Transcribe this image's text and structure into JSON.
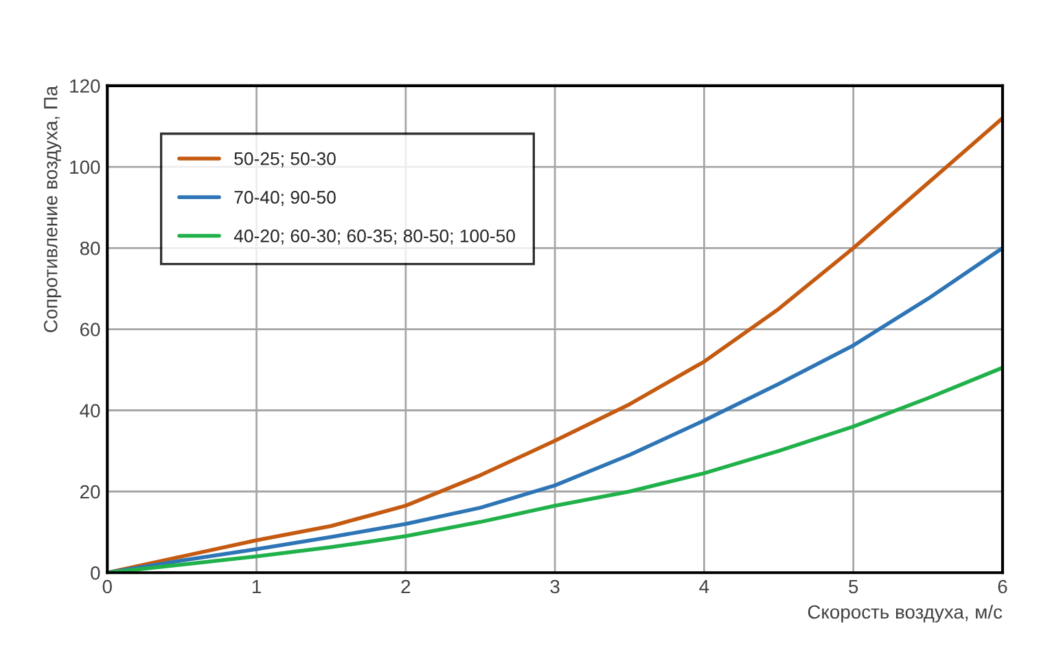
{
  "chart_data": {
    "type": "line",
    "xlabel": "Скорость воздуха, м/с",
    "ylabel": "Сопротивление воздуха, Па",
    "x": [
      0,
      0.5,
      1,
      1.5,
      1.75,
      2,
      2.5,
      3,
      3.5,
      4,
      4.5,
      5,
      5.5,
      6
    ],
    "series": [
      {
        "name": "50-25; 50-30",
        "color": "#c55a11",
        "values": [
          0,
          4,
          8,
          11.5,
          14,
          16.5,
          24,
          32.5,
          41.5,
          52,
          65,
          80,
          96,
          112
        ]
      },
      {
        "name": "70-40; 90-50",
        "color": "#2e75b6",
        "values": [
          0,
          3,
          5.8,
          8.8,
          10.4,
          12,
          16,
          21.5,
          29,
          37.5,
          46.5,
          56,
          67.5,
          80
        ]
      },
      {
        "name": "40-20; 60-30; 60-35; 80-50; 100-50",
        "color": "#21b14b",
        "values": [
          0,
          2,
          4,
          6.3,
          7.6,
          9,
          12.5,
          16.5,
          20,
          24.5,
          30,
          36,
          43,
          50.5
        ]
      }
    ],
    "xlim": [
      0,
      6
    ],
    "xticks": [
      0,
      1,
      2,
      3,
      4,
      5,
      6
    ],
    "ylim": [
      0,
      120
    ],
    "yticks": [
      0,
      20,
      40,
      60,
      80,
      100,
      120
    ],
    "grid": true,
    "legend": "top left",
    "marker": "none",
    "line_style": "solid"
  }
}
